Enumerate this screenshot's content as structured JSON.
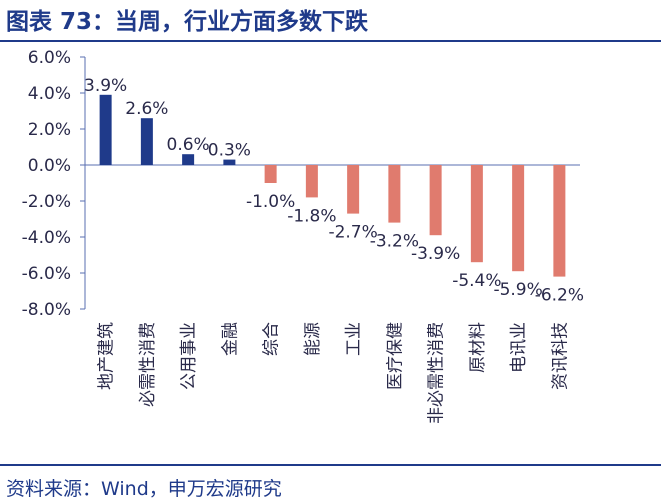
{
  "header": {
    "title": "图表 73：当周，行业方面多数下跌"
  },
  "footer": {
    "source": "资料来源：Wind，申万宏源研究"
  },
  "colors": {
    "positive": "#1f3a8a",
    "negative": "#e07b6e",
    "title": "#1f3a8a",
    "text": "#2a2a4a",
    "axis": "#5a6fb0"
  },
  "chart_data": {
    "type": "bar",
    "title": "当周，行业方面多数下跌",
    "xlabel": "",
    "ylabel": "",
    "categories": [
      "地产建筑",
      "必需性消费",
      "公用事业",
      "金融",
      "综合",
      "能源",
      "工业",
      "医疗保健",
      "非必需性消费",
      "原材料",
      "电讯业",
      "资讯科技"
    ],
    "values": [
      3.9,
      2.6,
      0.6,
      0.3,
      -1.0,
      -1.8,
      -2.7,
      -3.2,
      -3.9,
      -5.4,
      -5.9,
      -6.2
    ],
    "data_labels": [
      "3.9%",
      "2.6%",
      "0.6%",
      "0.3%",
      "-1.0%",
      "-1.8%",
      "-2.7%",
      "-3.2%",
      "-3.9%",
      "-5.4%",
      "-5.9%",
      "-6.2%"
    ],
    "yticks": [
      "6.0%",
      "4.0%",
      "2.0%",
      "0.0%",
      "-2.0%",
      "-4.0%",
      "-6.0%",
      "-8.0%"
    ],
    "ytick_values": [
      6,
      4,
      2,
      0,
      -2,
      -4,
      -6,
      -8
    ],
    "ylim": [
      -8,
      6
    ],
    "grid": false,
    "legend": "none"
  }
}
